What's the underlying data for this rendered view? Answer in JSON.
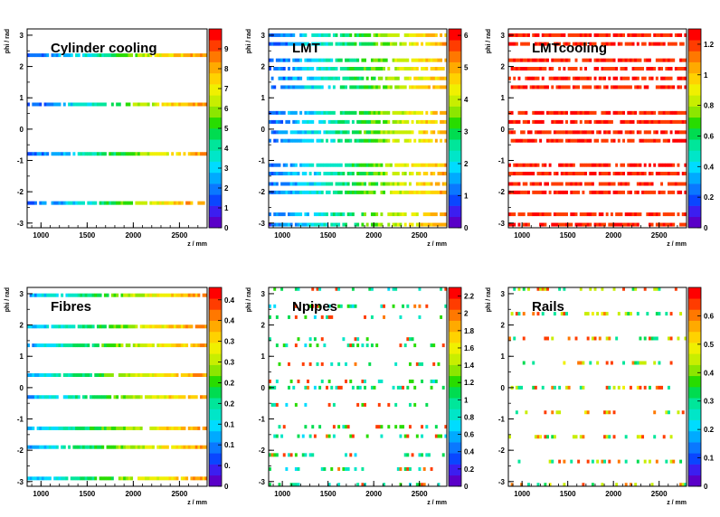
{
  "colors": {
    "palette": [
      "#5a00c8",
      "#3c1ef0",
      "#0a46ff",
      "#0a78ff",
      "#00aaff",
      "#00dcff",
      "#00e6c8",
      "#00e69a",
      "#00dc50",
      "#28dc00",
      "#8ce600",
      "#c8ee00",
      "#f0f000",
      "#ffd200",
      "#ffaa00",
      "#ff7800",
      "#ff3c00",
      "#ff0000"
    ],
    "background": "#ffffff"
  },
  "chart_data": [
    {
      "type": "heatmap",
      "title": "Cylinder cooling",
      "xlabel": "z / mm",
      "ylabel": "phi / rad",
      "xlim": [
        850,
        2800
      ],
      "ylim": [
        -3.15,
        3.2
      ],
      "x_ticks": [
        "1000",
        "1500",
        "2000",
        "2500"
      ],
      "y_ticks": [
        "3",
        "2",
        "1",
        "0",
        "-1",
        "-2",
        "-3"
      ],
      "z_ticks": [
        "0",
        "1",
        "2",
        "3",
        "4",
        "5",
        "6",
        "7",
        "8",
        "9"
      ],
      "zlim": [
        0,
        10
      ],
      "bands": [
        {
          "phi": 2.36,
          "values": [
            1.5,
            3,
            5,
            7,
            8.5
          ],
          "fill": 0.85
        },
        {
          "phi": 0.79,
          "values": [
            1.5,
            3,
            5,
            7,
            8.5
          ],
          "fill": 0.85
        },
        {
          "phi": -0.79,
          "values": [
            1.5,
            3,
            5,
            7,
            8.5
          ],
          "fill": 0.85
        },
        {
          "phi": -2.36,
          "values": [
            1.5,
            3,
            5,
            7,
            8.5
          ],
          "fill": 0.85
        }
      ]
    },
    {
      "type": "heatmap",
      "title": "LMT",
      "xlabel": "z / mm",
      "ylabel": "phi / rad",
      "xlim": [
        850,
        2800
      ],
      "ylim": [
        -3.15,
        3.2
      ],
      "x_ticks": [
        "1000",
        "1500",
        "2000",
        "2500"
      ],
      "y_ticks": [
        "3",
        "2",
        "1",
        "0",
        "-1",
        "-2",
        "-3"
      ],
      "z_ticks": [
        "0",
        "1",
        "2",
        "3",
        "4",
        "5",
        "6"
      ],
      "zlim": [
        0,
        6.2
      ],
      "bands": [
        {
          "phi": 3.0,
          "values": [
            1,
            2,
            3,
            4,
            5
          ],
          "fill": 0.85
        },
        {
          "phi": 2.72,
          "values": [
            1,
            2,
            3,
            4,
            5
          ],
          "fill": 0.85
        },
        {
          "phi": 2.2,
          "values": [
            1,
            2,
            3,
            4,
            5
          ],
          "fill": 0.85
        },
        {
          "phi": 1.93,
          "values": [
            1,
            2,
            3,
            4,
            5
          ],
          "fill": 0.85
        },
        {
          "phi": 1.62,
          "values": [
            1,
            2,
            3,
            4,
            5
          ],
          "fill": 0.85
        },
        {
          "phi": 1.34,
          "values": [
            1,
            2,
            3,
            4,
            5
          ],
          "fill": 0.85
        },
        {
          "phi": 0.52,
          "values": [
            1,
            2,
            3,
            4,
            5
          ],
          "fill": 0.85
        },
        {
          "phi": 0.23,
          "values": [
            1,
            2,
            3,
            4,
            5
          ],
          "fill": 0.85
        },
        {
          "phi": -0.1,
          "values": [
            1,
            2,
            3,
            4,
            5
          ],
          "fill": 0.85
        },
        {
          "phi": -0.37,
          "values": [
            1,
            2,
            3,
            4,
            5
          ],
          "fill": 0.85
        },
        {
          "phi": -1.15,
          "values": [
            1,
            2,
            3,
            4,
            5
          ],
          "fill": 0.85
        },
        {
          "phi": -1.42,
          "values": [
            1,
            2,
            3,
            4,
            5
          ],
          "fill": 0.85
        },
        {
          "phi": -1.75,
          "values": [
            1,
            2,
            3,
            4,
            5
          ],
          "fill": 0.85
        },
        {
          "phi": -2.02,
          "values": [
            1,
            2,
            3,
            4,
            5
          ],
          "fill": 0.85
        },
        {
          "phi": -2.72,
          "values": [
            1,
            2,
            3,
            4,
            5
          ],
          "fill": 0.85
        },
        {
          "phi": -3.05,
          "values": [
            1,
            2,
            3,
            4,
            5
          ],
          "fill": 0.85
        }
      ]
    },
    {
      "type": "heatmap",
      "title": "LMTcooling",
      "xlabel": "z / mm",
      "ylabel": "phi / rad",
      "xlim": [
        850,
        2800
      ],
      "ylim": [
        -3.15,
        3.2
      ],
      "x_ticks": [
        "1000",
        "1500",
        "2000",
        "2500"
      ],
      "y_ticks": [
        "3",
        "2",
        "1",
        "0",
        "-1",
        "-2",
        "-3"
      ],
      "z_ticks": [
        "0",
        "0.2",
        "0.4",
        "0.6",
        "0.8",
        "1",
        "1.2"
      ],
      "zlim": [
        0,
        1.3
      ],
      "bands": [
        {
          "phi": 3.0,
          "values": [
            1.2,
            1.25
          ],
          "fill": 0.8
        },
        {
          "phi": 2.72,
          "values": [
            1.2,
            1.25
          ],
          "fill": 0.8
        },
        {
          "phi": 2.2,
          "values": [
            1.2,
            1.25
          ],
          "fill": 0.8
        },
        {
          "phi": 1.93,
          "values": [
            1.2,
            1.25
          ],
          "fill": 0.8
        },
        {
          "phi": 1.62,
          "values": [
            1.2,
            1.25
          ],
          "fill": 0.8
        },
        {
          "phi": 1.34,
          "values": [
            1.2,
            1.25
          ],
          "fill": 0.8
        },
        {
          "phi": 0.52,
          "values": [
            1.2,
            1.25
          ],
          "fill": 0.8
        },
        {
          "phi": 0.23,
          "values": [
            1.2,
            1.25
          ],
          "fill": 0.8
        },
        {
          "phi": -0.1,
          "values": [
            1.2,
            1.25
          ],
          "fill": 0.8
        },
        {
          "phi": -0.37,
          "values": [
            1.2,
            1.25
          ],
          "fill": 0.8
        },
        {
          "phi": -1.15,
          "values": [
            1.2,
            1.25
          ],
          "fill": 0.8
        },
        {
          "phi": -1.42,
          "values": [
            1.2,
            1.25
          ],
          "fill": 0.8
        },
        {
          "phi": -1.75,
          "values": [
            1.2,
            1.25
          ],
          "fill": 0.8
        },
        {
          "phi": -2.02,
          "values": [
            1.2,
            1.25
          ],
          "fill": 0.8
        },
        {
          "phi": -2.72,
          "values": [
            1.2,
            1.25
          ],
          "fill": 0.8
        },
        {
          "phi": -3.05,
          "values": [
            1.2,
            1.25
          ],
          "fill": 0.8
        }
      ]
    },
    {
      "type": "heatmap",
      "title": "Fibres",
      "xlabel": "z / mm",
      "ylabel": "phi / rad",
      "xlim": [
        850,
        2800
      ],
      "ylim": [
        -3.15,
        3.2
      ],
      "x_ticks": [
        "1000",
        "1500",
        "2000",
        "2500"
      ],
      "y_ticks": [
        "3",
        "2",
        "1",
        "0",
        "-1",
        "-2",
        "-3"
      ],
      "z_ticks": [
        "0",
        "0.",
        "0.1",
        "0.1",
        "0.2",
        "0.2",
        "0.3",
        "0.3",
        "0.4",
        "0.4"
      ],
      "zlim": [
        0,
        0.48
      ],
      "bands": [
        {
          "phi": 2.95,
          "values": [
            0.12,
            0.22,
            0.32,
            0.4
          ],
          "fill": 0.9
        },
        {
          "phi": 1.95,
          "values": [
            0.12,
            0.22,
            0.32,
            0.4
          ],
          "fill": 0.9
        },
        {
          "phi": 1.35,
          "values": [
            0.12,
            0.22,
            0.32,
            0.4
          ],
          "fill": 0.9
        },
        {
          "phi": 0.4,
          "values": [
            0.12,
            0.22,
            0.32,
            0.4
          ],
          "fill": 0.9
        },
        {
          "phi": -0.3,
          "values": [
            0.12,
            0.22,
            0.32,
            0.4
          ],
          "fill": 0.9
        },
        {
          "phi": -1.3,
          "values": [
            0.12,
            0.22,
            0.32,
            0.4
          ],
          "fill": 0.9
        },
        {
          "phi": -1.9,
          "values": [
            0.12,
            0.22,
            0.32,
            0.4
          ],
          "fill": 0.9
        },
        {
          "phi": -2.9,
          "values": [
            0.12,
            0.22,
            0.32,
            0.4
          ],
          "fill": 0.9
        }
      ]
    },
    {
      "type": "heatmap",
      "title": "Npipes",
      "xlabel": "z / mm",
      "ylabel": "phi / rad",
      "xlim": [
        850,
        2800
      ],
      "ylim": [
        -3.15,
        3.2
      ],
      "x_ticks": [
        "1000",
        "1500",
        "2000",
        "2500"
      ],
      "y_ticks": [
        "3",
        "2",
        "1",
        "0",
        "-1",
        "-2",
        "-3"
      ],
      "z_ticks": [
        "0",
        "0.2",
        "0.4",
        "0.6",
        "0.8",
        "1",
        "1.2",
        "1.4",
        "1.6",
        "1.8",
        "2",
        "2.2"
      ],
      "zlim": [
        0,
        2.3
      ],
      "bands": [
        {
          "phi": 3.15,
          "values": [
            0.8,
            1.0,
            1.2,
            2.1
          ],
          "fill": 0.28
        },
        {
          "phi": 2.6,
          "values": [
            0.8,
            1.0,
            1.2,
            2.1
          ],
          "fill": 0.28
        },
        {
          "phi": 2.25,
          "values": [
            0.8,
            1.0,
            1.2,
            2.1
          ],
          "fill": 0.28
        },
        {
          "phi": 1.55,
          "values": [
            0.8,
            1.0,
            1.2,
            2.1
          ],
          "fill": 0.28
        },
        {
          "phi": 1.35,
          "values": [
            0.8,
            1.0,
            1.2,
            2.1
          ],
          "fill": 0.28
        },
        {
          "phi": 0.75,
          "values": [
            0.8,
            1.0,
            1.2,
            2.1
          ],
          "fill": 0.28
        },
        {
          "phi": 0.2,
          "values": [
            0.8,
            1.0,
            1.2,
            2.1
          ],
          "fill": 0.28
        },
        {
          "phi": 0.0,
          "values": [
            0.8,
            1.0,
            1.2,
            2.1
          ],
          "fill": 0.28
        },
        {
          "phi": -0.55,
          "values": [
            0.8,
            1.0,
            1.2,
            2.1
          ],
          "fill": 0.28
        },
        {
          "phi": -1.25,
          "values": [
            0.8,
            1.0,
            1.2,
            2.1
          ],
          "fill": 0.28
        },
        {
          "phi": -1.55,
          "values": [
            0.8,
            1.0,
            1.2,
            2.1
          ],
          "fill": 0.28
        },
        {
          "phi": -2.15,
          "values": [
            0.8,
            1.0,
            1.2,
            2.1
          ],
          "fill": 0.28
        },
        {
          "phi": -2.6,
          "values": [
            0.8,
            1.0,
            1.2,
            2.1
          ],
          "fill": 0.28
        },
        {
          "phi": -3.1,
          "values": [
            0.8,
            1.0,
            1.2,
            2.1
          ],
          "fill": 0.28
        }
      ]
    },
    {
      "type": "heatmap",
      "title": "Rails",
      "xlabel": "z / mm",
      "ylabel": "phi / rad",
      "xlim": [
        850,
        2800
      ],
      "ylim": [
        -3.15,
        3.2
      ],
      "x_ticks": [
        "1000",
        "1500",
        "2000",
        "2500"
      ],
      "y_ticks": [
        "3",
        "2",
        "1",
        "0",
        "-1",
        "-2",
        "-3"
      ],
      "z_ticks": [
        "0",
        "0.1",
        "0.2",
        "0.3",
        "0.4",
        "0.5",
        "0.6"
      ],
      "zlim": [
        0,
        0.7
      ],
      "bands": [
        {
          "phi": 3.15,
          "values": [
            0.3,
            0.45,
            0.62
          ],
          "fill": 0.3
        },
        {
          "phi": 2.36,
          "values": [
            0.3,
            0.45,
            0.62
          ],
          "fill": 0.3
        },
        {
          "phi": 1.57,
          "values": [
            0.3,
            0.45,
            0.62
          ],
          "fill": 0.3
        },
        {
          "phi": 0.79,
          "values": [
            0.3,
            0.45,
            0.62
          ],
          "fill": 0.3
        },
        {
          "phi": 0.0,
          "values": [
            0.3,
            0.45,
            0.62
          ],
          "fill": 0.3
        },
        {
          "phi": -0.79,
          "values": [
            0.3,
            0.45,
            0.62
          ],
          "fill": 0.3
        },
        {
          "phi": -1.57,
          "values": [
            0.3,
            0.45,
            0.62
          ],
          "fill": 0.3
        },
        {
          "phi": -2.36,
          "values": [
            0.3,
            0.45,
            0.62
          ],
          "fill": 0.3
        },
        {
          "phi": -3.1,
          "values": [
            0.3,
            0.45,
            0.62
          ],
          "fill": 0.3
        }
      ]
    }
  ]
}
